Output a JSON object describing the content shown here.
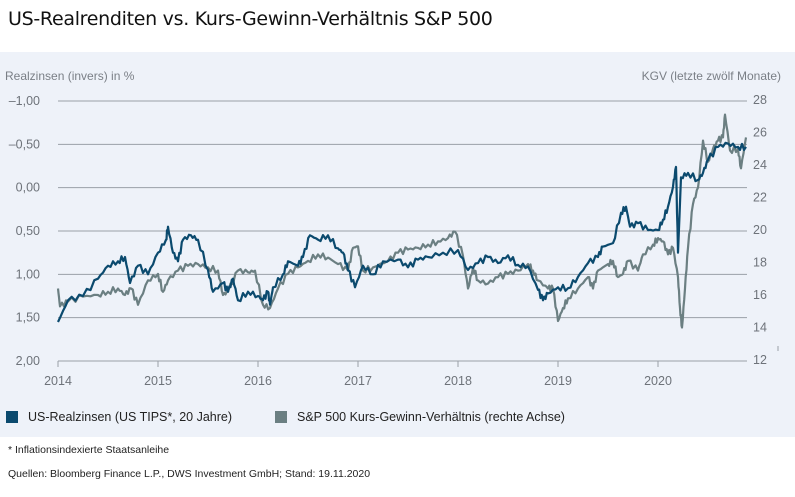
{
  "title": "US-Realrenditen vs. Kurs-Gewinn-Verhältnis S&P 500",
  "footnote": "* Inflationsindexierte Staatsanleihe",
  "source": "Quellen: Bloomberg Finance L.P., DWS Investment GmbH; Stand: 19.11.2020",
  "colors": {
    "real_yield": "#0b4a6e",
    "pe": "#6b7f82",
    "panel": "#eef2f9",
    "grid": "#9aa0a8"
  },
  "chart_data": {
    "type": "line",
    "title": "US-Realrenditen vs. Kurs-Gewinn-Verhältnis S&P 500",
    "ylabel": "Realzinsen (invers) in %",
    "y2label": "KGV (letzte zwölf Monate)",
    "ylim": [
      2.0,
      -1.0
    ],
    "y2lim": [
      12,
      28
    ],
    "xlim": [
      2014,
      2020.9
    ],
    "xticks": [
      "2014",
      "2015",
      "2016",
      "2017",
      "2018",
      "2019",
      "2020"
    ],
    "yticks": [
      "–1,00",
      "–0,50",
      "0,00",
      "0,50",
      "1,00",
      "1,50",
      "2,00"
    ],
    "y2ticks": [
      "28",
      "26",
      "24",
      "22",
      "20",
      "18",
      "16",
      "14",
      "12"
    ],
    "grid": true,
    "legend_position": "bottom",
    "series": [
      {
        "name": "US-Realzinsen (US TIPS*, 20 Jahre)",
        "axis": "left",
        "x": [
          2014.0,
          2014.1,
          2014.25,
          2014.4,
          2014.5,
          2014.6,
          2014.67,
          2014.72,
          2014.8,
          2014.9,
          2015.0,
          2015.08,
          2015.1,
          2015.15,
          2015.2,
          2015.25,
          2015.33,
          2015.4,
          2015.5,
          2015.55,
          2015.65,
          2015.7,
          2015.75,
          2015.8,
          2015.9,
          2016.0,
          2016.05,
          2016.1,
          2016.12,
          2016.15,
          2016.25,
          2016.3,
          2016.4,
          2016.45,
          2016.52,
          2016.6,
          2016.7,
          2016.8,
          2016.85,
          2016.9,
          2016.97,
          2017.05,
          2017.15,
          2017.25,
          2017.4,
          2017.5,
          2017.6,
          2017.7,
          2017.85,
          2018.0,
          2018.1,
          2018.2,
          2018.3,
          2018.4,
          2018.5,
          2018.6,
          2018.7,
          2018.8,
          2018.85,
          2018.9,
          2019.0,
          2019.1,
          2019.2,
          2019.3,
          2019.4,
          2019.45,
          2019.55,
          2019.63,
          2019.68,
          2019.72,
          2019.8,
          2019.9,
          2020.0,
          2020.05,
          2020.1,
          2020.15,
          2020.18,
          2020.2,
          2020.23,
          2020.3,
          2020.4,
          2020.45,
          2020.5,
          2020.6,
          2020.7,
          2020.8,
          2020.88
        ],
        "values": [
          1.55,
          1.3,
          1.25,
          1.05,
          0.9,
          0.85,
          0.8,
          1.1,
          0.9,
          1.0,
          0.75,
          0.6,
          0.45,
          0.75,
          0.85,
          0.6,
          0.55,
          0.6,
          0.95,
          1.2,
          1.1,
          1.2,
          1.05,
          1.3,
          1.2,
          1.25,
          1.3,
          1.2,
          1.35,
          1.15,
          1.0,
          0.85,
          0.9,
          0.8,
          0.55,
          0.6,
          0.55,
          0.7,
          0.75,
          0.95,
          1.15,
          0.9,
          1.0,
          0.85,
          0.83,
          0.92,
          0.83,
          0.8,
          0.75,
          0.72,
          0.95,
          0.87,
          0.8,
          0.87,
          0.78,
          0.89,
          0.91,
          1.18,
          1.3,
          1.22,
          1.15,
          1.16,
          1.03,
          0.87,
          0.8,
          0.68,
          0.64,
          0.29,
          0.22,
          0.45,
          0.41,
          0.49,
          0.49,
          0.37,
          0.22,
          -0.01,
          -0.24,
          0.75,
          -0.12,
          -0.17,
          -0.09,
          -0.17,
          -0.32,
          -0.47,
          -0.51,
          -0.47,
          -0.47
        ]
      },
      {
        "name": "S&P 500 Kurs-Gewinn-Verhältnis (rechte Achse)",
        "axis": "right",
        "x": [
          2014.0,
          2014.02,
          2014.1,
          2014.25,
          2014.4,
          2014.5,
          2014.6,
          2014.67,
          2014.73,
          2014.8,
          2014.9,
          2015.0,
          2015.05,
          2015.1,
          2015.2,
          2015.3,
          2015.4,
          2015.5,
          2015.6,
          2015.65,
          2015.7,
          2015.8,
          2015.9,
          2015.97,
          2016.05,
          2016.12,
          2016.2,
          2016.3,
          2016.4,
          2016.5,
          2016.6,
          2016.7,
          2016.8,
          2016.9,
          2016.95,
          2017.0,
          2017.05,
          2017.15,
          2017.3,
          2017.4,
          2017.5,
          2017.6,
          2017.7,
          2017.8,
          2017.9,
          2017.97,
          2018.05,
          2018.1,
          2018.15,
          2018.2,
          2018.3,
          2018.4,
          2018.5,
          2018.6,
          2018.7,
          2018.75,
          2018.8,
          2018.9,
          2018.95,
          2019.0,
          2019.05,
          2019.1,
          2019.2,
          2019.3,
          2019.35,
          2019.4,
          2019.5,
          2019.55,
          2019.6,
          2019.65,
          2019.7,
          2019.8,
          2019.85,
          2019.95,
          2020.0,
          2020.05,
          2020.1,
          2020.15,
          2020.2,
          2020.22,
          2020.24,
          2020.27,
          2020.3,
          2020.35,
          2020.4,
          2020.45,
          2020.5,
          2020.55,
          2020.6,
          2020.65,
          2020.67,
          2020.72,
          2020.8,
          2020.83,
          2020.88
        ],
        "values": [
          16.4,
          15.3,
          15.6,
          15.9,
          16.0,
          16.2,
          16.4,
          16.0,
          16.4,
          15.4,
          16.9,
          17.3,
          16.2,
          16.9,
          17.5,
          17.8,
          17.9,
          17.7,
          17.5,
          16.0,
          16.2,
          17.5,
          17.4,
          17.5,
          15.4,
          15.2,
          16.4,
          17.3,
          17.7,
          18.1,
          18.5,
          18.3,
          17.9,
          17.5,
          18.9,
          19.0,
          17.5,
          17.7,
          18.1,
          18.6,
          18.8,
          18.9,
          19.1,
          19.3,
          19.5,
          19.9,
          18.4,
          16.4,
          17.7,
          16.9,
          16.7,
          17.1,
          17.3,
          17.5,
          17.9,
          17.5,
          16.9,
          16.4,
          16.4,
          14.4,
          15.2,
          15.8,
          16.4,
          17.1,
          16.4,
          17.5,
          17.9,
          18.1,
          17.1,
          17.3,
          18.1,
          17.5,
          18.5,
          19.1,
          19.5,
          19.3,
          18.5,
          18.9,
          17.1,
          15.2,
          14.0,
          16.4,
          18.9,
          21.6,
          22.6,
          25.5,
          24.2,
          25.0,
          25.5,
          25.7,
          27.1,
          24.9,
          25.0,
          23.8,
          25.7
        ]
      }
    ]
  }
}
